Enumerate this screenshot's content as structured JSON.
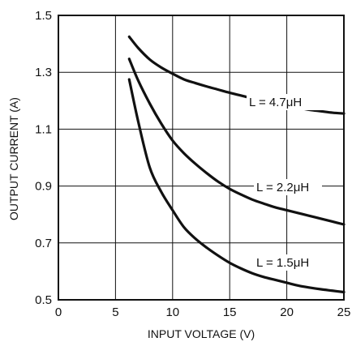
{
  "chart_data": {
    "type": "line",
    "xlabel": "INPUT VOLTAGE (V)",
    "ylabel": "OUTPUT CURRENT (A)",
    "xlim": [
      0,
      25
    ],
    "ylim": [
      0.5,
      1.5
    ],
    "xticks": [
      0,
      5,
      10,
      15,
      20,
      25
    ],
    "yticks": [
      0.5,
      0.7,
      0.9,
      1.1,
      1.3,
      1.5
    ],
    "xtick_labels": [
      "0",
      "5",
      "10",
      "15",
      "20",
      "25"
    ],
    "ytick_labels": [
      "0.5",
      "0.7",
      "0.9",
      "1.1",
      "1.3",
      "1.5"
    ],
    "grid": true,
    "line_color": "#111111",
    "series": [
      {
        "name": "L = 4.7μH",
        "x": [
          6.2,
          7,
          8,
          9,
          10,
          11,
          12,
          13,
          14,
          15,
          16,
          17,
          18,
          19,
          20,
          21,
          22,
          23,
          24,
          25
        ],
        "y": [
          1.425,
          1.385,
          1.345,
          1.317,
          1.295,
          1.275,
          1.262,
          1.25,
          1.239,
          1.228,
          1.218,
          1.208,
          1.198,
          1.19,
          1.182,
          1.175,
          1.168,
          1.163,
          1.158,
          1.155
        ]
      },
      {
        "name": "L = 2.2μH",
        "x": [
          6.2,
          7,
          8,
          9,
          10,
          11,
          12,
          13,
          14,
          15,
          16,
          17,
          18,
          19,
          20,
          21,
          22,
          23,
          24,
          25
        ],
        "y": [
          1.347,
          1.27,
          1.19,
          1.12,
          1.06,
          1.015,
          0.978,
          0.945,
          0.915,
          0.89,
          0.87,
          0.852,
          0.838,
          0.825,
          0.815,
          0.805,
          0.795,
          0.785,
          0.775,
          0.765
        ]
      },
      {
        "name": "L = 1.5μH",
        "x": [
          6.2,
          7,
          8,
          9,
          10,
          11,
          12,
          13,
          14,
          15,
          16,
          17,
          18,
          19,
          20,
          21,
          22,
          23,
          24,
          25
        ],
        "y": [
          1.275,
          1.125,
          0.965,
          0.88,
          0.815,
          0.755,
          0.715,
          0.683,
          0.655,
          0.63,
          0.61,
          0.593,
          0.58,
          0.57,
          0.56,
          0.55,
          0.543,
          0.537,
          0.532,
          0.527
        ]
      }
    ]
  }
}
